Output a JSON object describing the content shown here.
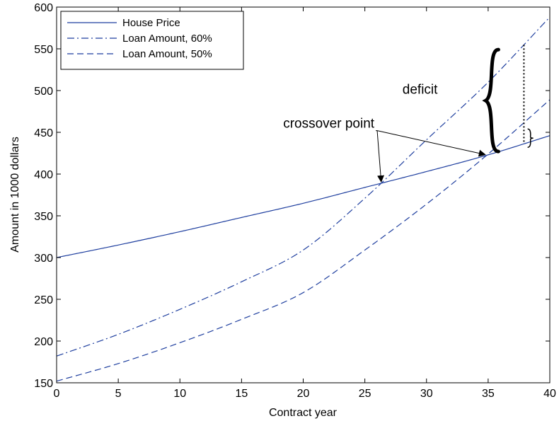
{
  "chart_data": {
    "type": "line",
    "title": "",
    "xlabel": "Contract year",
    "ylabel": "Amount in 1000 dollars",
    "xlim": [
      0,
      40
    ],
    "ylim": [
      150,
      600
    ],
    "xticks": [
      0,
      5,
      10,
      15,
      20,
      25,
      30,
      35,
      40
    ],
    "yticks": [
      150,
      200,
      250,
      300,
      350,
      400,
      450,
      500,
      550,
      600
    ],
    "grid": false,
    "legend_position": "top-left",
    "x": [
      0,
      5,
      10,
      15,
      20,
      25,
      30,
      35,
      40
    ],
    "series": [
      {
        "name": "House Price",
        "style": "solid",
        "values": [
          300,
          315,
          331,
          348,
          365,
          384,
          403,
          423,
          446
        ]
      },
      {
        "name": "Loan Amount, 60%",
        "style": "dashdot",
        "values": [
          182,
          208,
          238,
          271,
          309,
          371,
          441,
          510,
          588
        ]
      },
      {
        "name": "Loan Amount, 50%",
        "style": "dashed",
        "values": [
          152,
          173,
          198,
          226,
          258,
          309,
          364,
          424,
          489
        ]
      }
    ],
    "annotations": [
      {
        "text": "crossover point"
      },
      {
        "text": "deficit"
      }
    ]
  },
  "colors": {
    "line": "#1f3f9f",
    "axis": "#000000"
  }
}
